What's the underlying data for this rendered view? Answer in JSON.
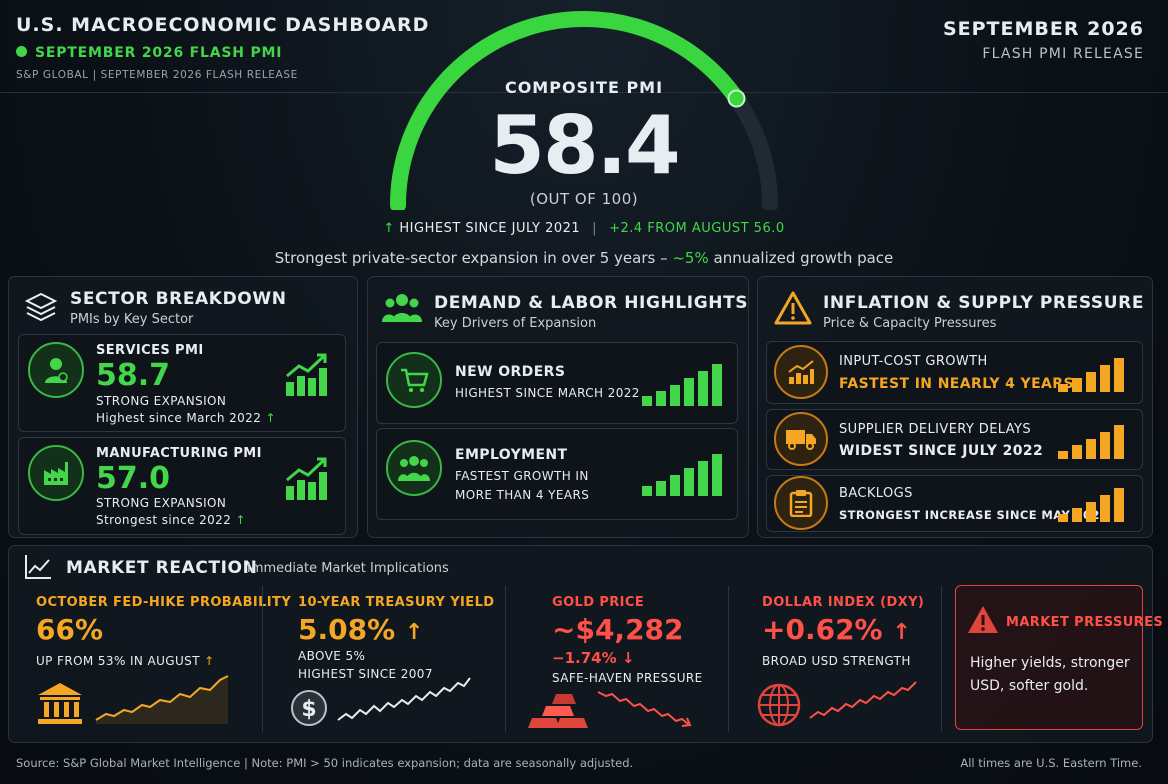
{
  "header": {
    "title": "U.S. MACROECONOMIC DASHBOARD",
    "subtitle": "SEPTEMBER 2026 FLASH PMI",
    "source_line": "S&P GLOBAL  |  SEPTEMBER 2026 FLASH RELEASE",
    "right_title": "SEPTEMBER 2026",
    "right_sub": "FLASH PMI RELEASE"
  },
  "gauge": {
    "label": "COMPOSITE PMI",
    "value": "58.4",
    "level": 0.584,
    "scale": "(OUT OF 100)",
    "stat1": "HIGHEST SINCE JULY 2021",
    "stat2": "+2.4 FROM AUGUST 56.0",
    "summary_pre": "Strongest private-sector expansion in over 5 years – ",
    "summary_highlight": "~5%",
    "summary_post": " annualized growth pace"
  },
  "sector": {
    "title": "SECTOR BREAKDOWN",
    "subtitle": "PMIs by Key Sector",
    "items": [
      {
        "label": "SERVICES PMI",
        "value": "58.7",
        "status": "STRONG EXPANSION",
        "note": "Highest since March 2022"
      },
      {
        "label": "MANUFACTURING PMI",
        "value": "57.0",
        "status": "STRONG EXPANSION",
        "note": "Strongest since 2022"
      }
    ]
  },
  "demand": {
    "title": "DEMAND & LABOR HIGHLIGHTS",
    "subtitle": "Key Drivers of Expansion",
    "items": [
      {
        "label": "NEW ORDERS",
        "line1": "HIGHEST SINCE MARCH 2022",
        "line2": ""
      },
      {
        "label": "EMPLOYMENT",
        "line1": "FASTEST GROWTH IN",
        "line2": "MORE THAN 4 YEARS"
      }
    ]
  },
  "inflation": {
    "title": "INFLATION & SUPPLY PRESSURE",
    "subtitle": "Price & Capacity Pressures",
    "items": [
      {
        "label": "INPUT-COST GROWTH",
        "note": "FASTEST IN NEARLY 4 YEARS"
      },
      {
        "label": "SUPPLIER DELIVERY DELAYS",
        "note": "WIDEST SINCE JULY 2022"
      },
      {
        "label": "BACKLOGS",
        "note": "STRONGEST INCREASE SINCE MAY 2022"
      }
    ]
  },
  "market": {
    "title": "MARKET REACTION",
    "subtitle": "Immediate Market Implications",
    "fed": {
      "head": "OCTOBER FED-HIKE PROBABILITY",
      "value": "66%",
      "note": "UP FROM 53% IN AUGUST"
    },
    "treasury": {
      "head": "10-YEAR TREASURY YIELD",
      "value": "5.08%",
      "note1": "ABOVE 5%",
      "note2": "HIGHEST SINCE 2007"
    },
    "gold": {
      "head": "GOLD PRICE",
      "value": "~$4,282",
      "change": "−1.74%",
      "note": "SAFE-HAVEN PRESSURE"
    },
    "dollar": {
      "head": "DOLLAR INDEX (DXY)",
      "value": "+0.62%",
      "note": "BROAD USD STRENGTH"
    },
    "pressures": {
      "head": "MARKET PRESSURES",
      "text": "Higher yields, stronger USD, softer gold."
    }
  },
  "footer": {
    "left": "Source: S&P Global Market Intelligence  |  Note: PMI > 50 indicates expansion; data are seasonally adjusted.",
    "right": "All times are U.S. Eastern Time."
  },
  "colors": {
    "green": "#43d64b",
    "orange": "#f5a623",
    "red": "#ff5148",
    "background": "#0b1117"
  }
}
